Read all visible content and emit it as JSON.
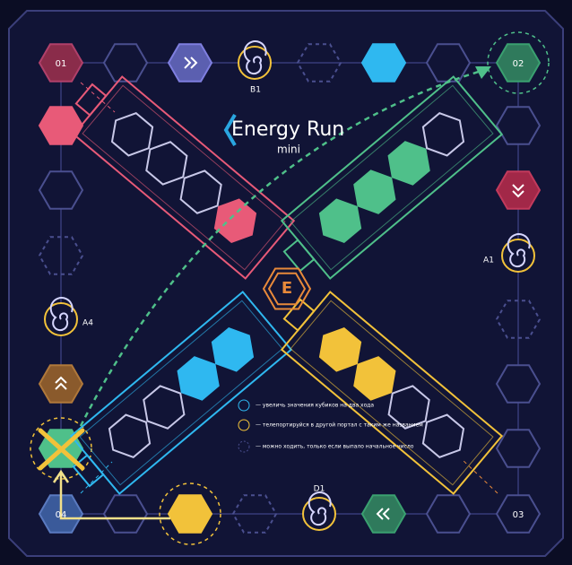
{
  "title": "Energy Run",
  "subtitle": "mini",
  "center_label": "E",
  "corners": [
    "01",
    "02",
    "03",
    "04"
  ],
  "portals": [
    "B1",
    "A1",
    "A4",
    "D1"
  ],
  "legend": [
    "— увеличь значения кубиков на два хода",
    "— телепортируйся в другой портал с таким же названием",
    "— можно ходить, только если выпало начальное число"
  ]
}
